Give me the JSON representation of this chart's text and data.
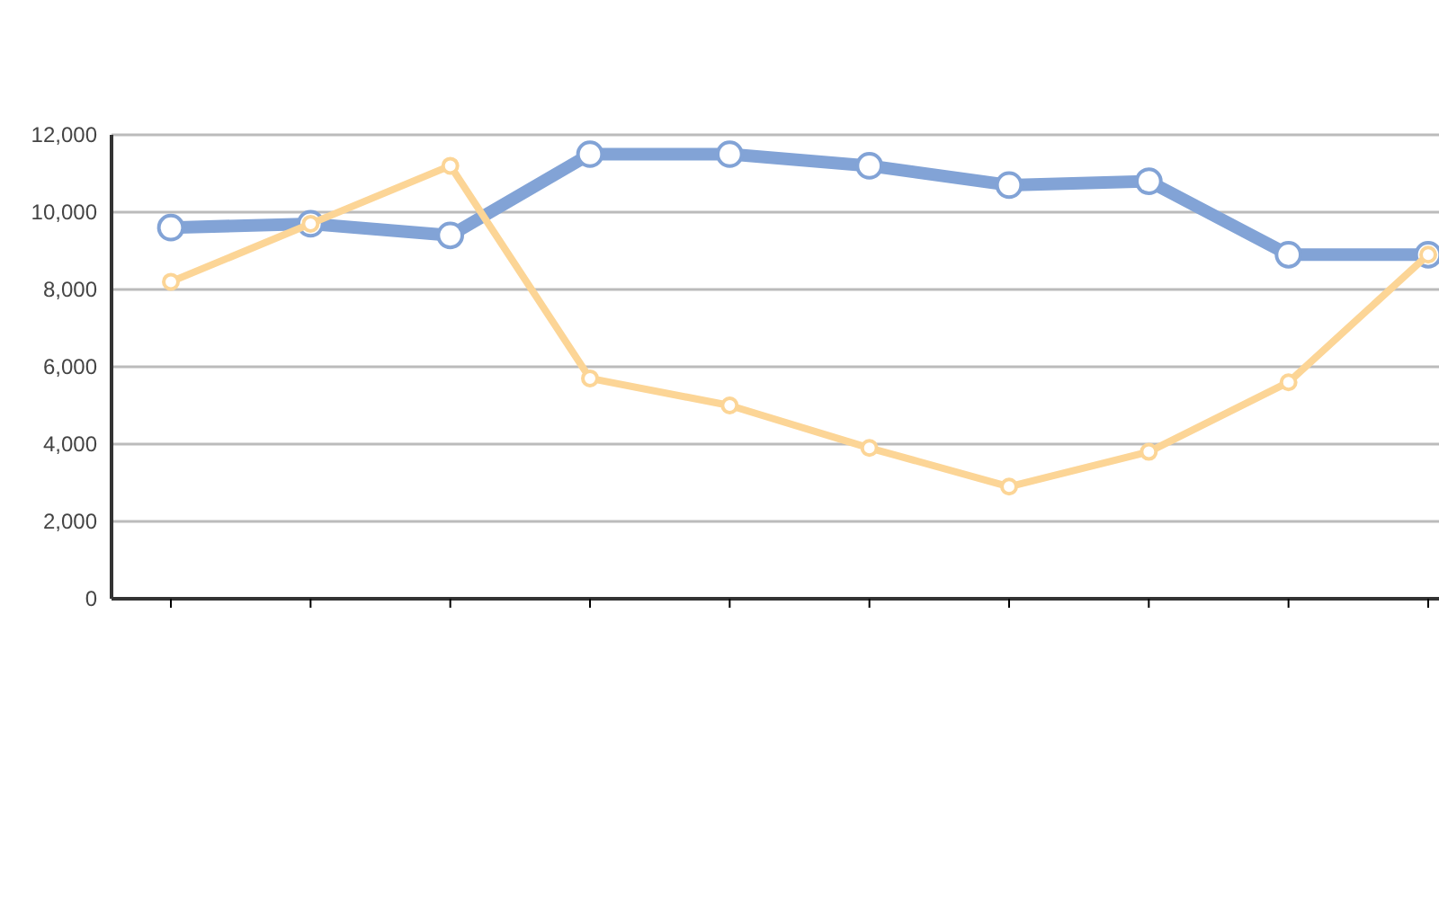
{
  "chart_data": {
    "type": "line",
    "categories": [
      null,
      null,
      null,
      null,
      null,
      null,
      null,
      null,
      null,
      null
    ],
    "series": [
      {
        "color": "#82a3d6",
        "values": [
          9600,
          9700,
          9400,
          11500,
          11500,
          11200,
          10700,
          10800,
          8900,
          8900
        ]
      },
      {
        "color": "#fcd596",
        "values": [
          8200,
          9700,
          11200,
          5700,
          5000,
          3900,
          2900,
          3800,
          5600,
          8900
        ]
      }
    ],
    "ylim": [
      0,
      12000
    ],
    "yticks": [
      0,
      {
        "value": 2000,
        "label": "2,000"
      },
      {
        "value": 4000,
        "label": "4,000"
      },
      {
        "value": 6000,
        "label": "6,000"
      },
      {
        "value": 8000,
        "label": "8,000"
      },
      {
        "value": 10000,
        "label": "10,000"
      },
      {
        "value": 12000,
        "label": "12,000"
      }
    ],
    "grid": "y",
    "marker": "circle",
    "line_style": "solid"
  }
}
